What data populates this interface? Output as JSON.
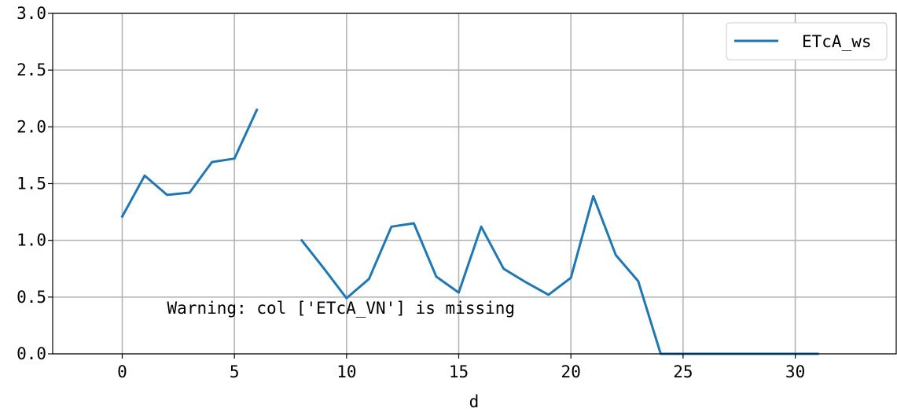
{
  "chart_data": {
    "type": "line",
    "title": "",
    "xlabel": "d",
    "ylabel": "",
    "xlim": [
      -3.1,
      34.5
    ],
    "ylim": [
      0.0,
      3.0
    ],
    "x_ticks": [
      0,
      5,
      10,
      15,
      20,
      25,
      30
    ],
    "x_tick_labels": [
      "0",
      "5",
      "10",
      "15",
      "20",
      "25",
      "30"
    ],
    "y_ticks": [
      0.0,
      0.5,
      1.0,
      1.5,
      2.0,
      2.5,
      3.0
    ],
    "y_tick_labels": [
      "0.0",
      "0.5",
      "1.0",
      "1.5",
      "2.0",
      "2.5",
      "3.0"
    ],
    "grid": true,
    "legend_position": "top-right",
    "series": [
      {
        "name": "ETcA_ws",
        "color": "#1f77b4",
        "x": [
          0,
          1,
          2,
          3,
          4,
          5,
          6,
          7,
          8,
          9,
          10,
          11,
          12,
          13,
          14,
          15,
          16,
          17,
          18,
          19,
          20,
          21,
          22,
          23,
          24,
          25,
          26,
          27,
          28,
          29,
          30,
          31
        ],
        "y": [
          1.21,
          1.57,
          1.4,
          1.42,
          1.69,
          1.72,
          2.15,
          null,
          1.0,
          0.75,
          0.49,
          0.66,
          1.12,
          1.15,
          0.68,
          0.54,
          1.12,
          0.75,
          0.63,
          0.52,
          0.67,
          1.39,
          0.87,
          0.64,
          0.0,
          0.0,
          0.0,
          0.0,
          0.0,
          0.0,
          0.0,
          0.0
        ]
      }
    ],
    "annotations": [
      {
        "text": "Warning: col ['ETcA_VN'] is missing",
        "x": 2.0,
        "y": 0.355
      }
    ]
  }
}
